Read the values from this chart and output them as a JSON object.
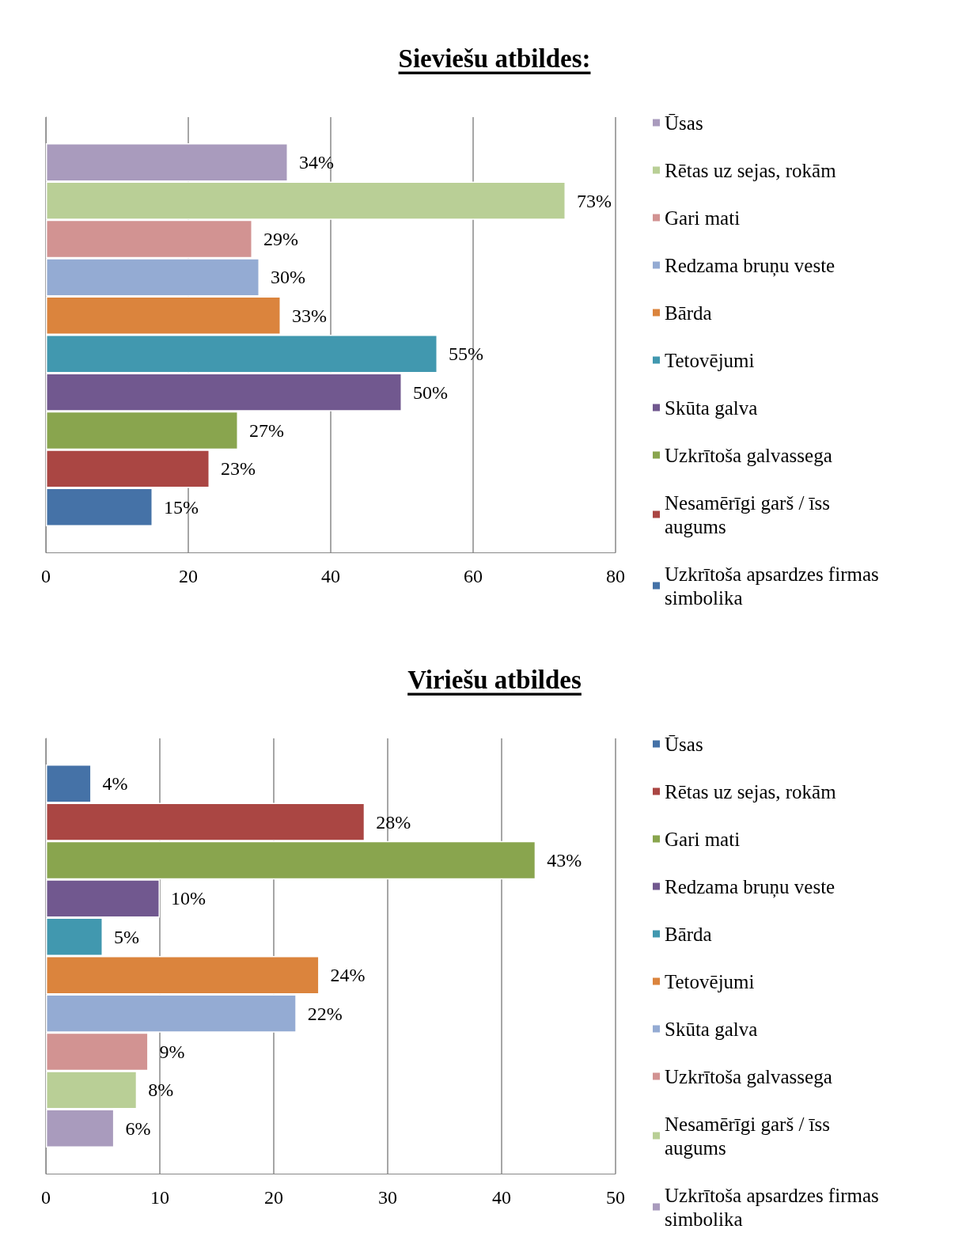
{
  "chart_data": [
    {
      "type": "bar",
      "title": "Sieviešu atbildes:",
      "orientation": "horizontal",
      "categories": [
        null
      ],
      "xlim": [
        0,
        80
      ],
      "xticks": [
        0,
        20,
        40,
        60,
        80
      ],
      "grid": "x",
      "legend": "right",
      "series": [
        {
          "name": "Ūsas",
          "color": "#a99bbd",
          "values": [
            34
          ],
          "value_labels": [
            "34%"
          ]
        },
        {
          "name": "Rētas uz sejas, rokām",
          "color": "#b9cf96",
          "values": [
            73
          ],
          "value_labels": [
            "73%"
          ]
        },
        {
          "name": "Gari mati",
          "color": "#d29392",
          "values": [
            29
          ],
          "value_labels": [
            "29%"
          ]
        },
        {
          "name": "Redzama bruņu veste",
          "color": "#94abd3",
          "values": [
            30
          ],
          "value_labels": [
            "30%"
          ]
        },
        {
          "name": "Bārda",
          "color": "#db843d",
          "values": [
            33
          ],
          "value_labels": [
            "33%"
          ]
        },
        {
          "name": "Tetovējumi",
          "color": "#4198af",
          "values": [
            55
          ],
          "value_labels": [
            "55%"
          ]
        },
        {
          "name": "Skūta galva",
          "color": "#71588f",
          "values": [
            50
          ],
          "value_labels": [
            "50%"
          ]
        },
        {
          "name": "Uzkrītoša galvassega",
          "color": "#89a54e",
          "values": [
            27
          ],
          "value_labels": [
            "27%"
          ]
        },
        {
          "name": "Nesamērīgi garš / īss augums",
          "color": "#aa4643",
          "values": [
            23
          ],
          "value_labels": [
            "23%"
          ]
        },
        {
          "name": "Uzkrītoša apsardzes firmas simbolika",
          "color": "#4572a7",
          "values": [
            15
          ],
          "value_labels": [
            "15%"
          ]
        }
      ]
    },
    {
      "type": "bar",
      "title": "Viriešu atbildes",
      "orientation": "horizontal",
      "categories": [
        null
      ],
      "xlim": [
        0,
        50
      ],
      "xticks": [
        0,
        10,
        20,
        30,
        40,
        50
      ],
      "grid": "x",
      "legend": "right",
      "series": [
        {
          "name": "Ūsas",
          "color": "#4572a7",
          "values": [
            4
          ],
          "value_labels": [
            "4%"
          ]
        },
        {
          "name": "Rētas uz sejas, rokām",
          "color": "#aa4643",
          "values": [
            28
          ],
          "value_labels": [
            "28%"
          ]
        },
        {
          "name": "Gari mati",
          "color": "#89a54e",
          "values": [
            43
          ],
          "value_labels": [
            "43%"
          ]
        },
        {
          "name": "Redzama bruņu veste",
          "color": "#71588f",
          "values": [
            10
          ],
          "value_labels": [
            "10%"
          ]
        },
        {
          "name": "Bārda",
          "color": "#4198af",
          "values": [
            5
          ],
          "value_labels": [
            "5%"
          ]
        },
        {
          "name": "Tetovējumi",
          "color": "#db843d",
          "values": [
            24
          ],
          "value_labels": [
            "24%"
          ]
        },
        {
          "name": "Skūta galva",
          "color": "#94abd3",
          "values": [
            22
          ],
          "value_labels": [
            "22%"
          ]
        },
        {
          "name": "Uzkrītoša galvassega",
          "color": "#d29392",
          "values": [
            9
          ],
          "value_labels": [
            "9%"
          ]
        },
        {
          "name": "Nesamērīgi garš / īss augums",
          "color": "#b9cf96",
          "values": [
            8
          ],
          "value_labels": [
            "8%"
          ]
        },
        {
          "name": "Uzkrītoša apsardzes firmas simbolika",
          "color": "#a99bbd",
          "values": [
            6
          ],
          "value_labels": [
            "6%"
          ]
        }
      ]
    }
  ]
}
